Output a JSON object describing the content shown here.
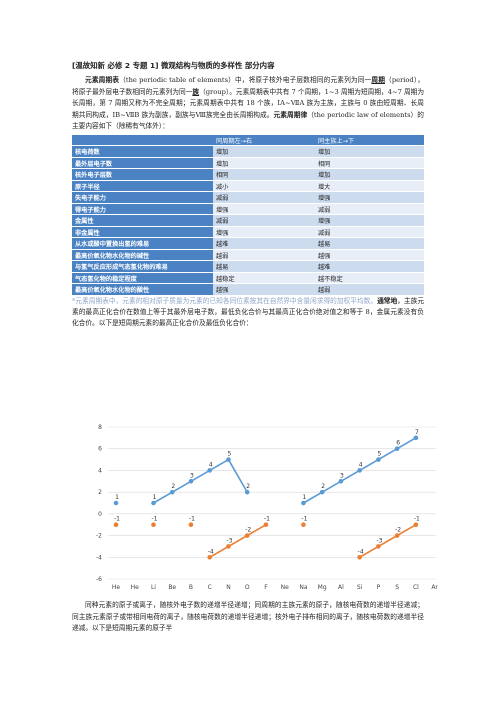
{
  "heading": "[温故知新 必修 2 专题 1] 微观结构与物质的多样性 部分内容",
  "intro": {
    "p1_a": "元素周期表",
    "p1_b": "（the periodic table of elements）中，将原子核外电子层数相同的元素列为同一",
    "p1_c": "周期",
    "p1_d": "（period），将原子最外层电子数相同的元素列为同一",
    "p1_e": "族",
    "p1_f": "（group）。元素周期表中共有 7 个周期，1~3 周期为短周期，4~7 周期为长周期，第 7 周期又称为不完全周期；元素周期表中共有 18 个族，ⅠA~ⅦA 族为主族，主族与 0 族由短周期、长周期共同构成，ⅠB~ⅦB 族为副族，副族与Ⅷ族完全由长周期构成。",
    "p1_g": "元素周期律",
    "p1_h": "（the periodic law of elements）的主要内容如下（除稀有气体外）："
  },
  "table": {
    "header": [
      "",
      "同周期左→右",
      "同主族上→下"
    ],
    "rows": [
      [
        "核电荷数",
        "增加",
        "增加"
      ],
      [
        "最外层电子数",
        "增加",
        "相同"
      ],
      [
        "核外电子层数",
        "相同",
        "增加"
      ],
      [
        "原子半径",
        "减小",
        "增大"
      ],
      [
        "失电子能力",
        "减弱",
        "增强"
      ],
      [
        "得电子能力",
        "增强",
        "减弱"
      ],
      [
        "金属性",
        "减弱",
        "增强"
      ],
      [
        "非金属性",
        "增强",
        "减弱"
      ],
      [
        "从水或酸中置换出氢的难易",
        "越难",
        "越易"
      ],
      [
        "最高价氧化物水化物的碱性",
        "越弱",
        "越强"
      ],
      [
        "与氢气反应形成气态氢化物的难易",
        "越易",
        "越难"
      ],
      [
        "气态氢化物的稳定程度",
        "越稳定",
        "越不稳定"
      ],
      [
        "最高价氧化物水化物的酸性",
        "越强",
        "越弱"
      ]
    ]
  },
  "note": {
    "faded": "*元素周期表中，元素的相对原子质量为元素的已知各同位素按其在自然界中含量闲求得的加权平均数。",
    "bold": "通常地",
    "rest": "，主族元素的最高正化合价在数值上等于其最外层电子数，最低负化合价与其最高正化合价绝对值之和等于 8，金属元素没有负化合价。以下是短周期元素的最高正化合价及最低负化合价："
  },
  "chart_data": {
    "type": "line",
    "categories": [
      "He",
      "He",
      "Li",
      "Be",
      "B",
      "C",
      "N",
      "O",
      "F",
      "Ne",
      "Na",
      "Mg",
      "Al",
      "Si",
      "P",
      "S",
      "Cl",
      "Ar"
    ],
    "ylim": [
      -6,
      8
    ],
    "yticks": [
      -6,
      -4,
      -2,
      0,
      2,
      4,
      6,
      8
    ],
    "series": [
      {
        "color": "#5b9bd5",
        "values": [
          1,
          null,
          1,
          2,
          3,
          4,
          5,
          2,
          null,
          null,
          1,
          2,
          3,
          4,
          5,
          6,
          7,
          null
        ]
      },
      {
        "color": "#ed7d31",
        "values": [
          null,
          null,
          null,
          null,
          null,
          -4,
          -3,
          -2,
          -1,
          null,
          null,
          null,
          null,
          -4,
          -3,
          -2,
          -1,
          null
        ]
      },
      {
        "color": "#ed7d31",
        "values": [
          -1,
          null,
          -1,
          null,
          -1,
          null,
          null,
          null,
          null,
          null,
          -1,
          null,
          null,
          null,
          null,
          null,
          null,
          null
        ]
      }
    ],
    "point_labels_pos": [
      {
        "i": 0,
        "s": 0,
        "t": "1"
      },
      {
        "i": 2,
        "s": 0,
        "t": "1"
      },
      {
        "i": 3,
        "s": 0,
        "t": "2"
      },
      {
        "i": 4,
        "s": 0,
        "t": "3"
      },
      {
        "i": 5,
        "s": 0,
        "t": "4"
      },
      {
        "i": 6,
        "s": 0,
        "t": "5"
      },
      {
        "i": 7,
        "s": 0,
        "t": "2"
      },
      {
        "i": 10,
        "s": 0,
        "t": "1"
      },
      {
        "i": 11,
        "s": 0,
        "t": "2"
      },
      {
        "i": 12,
        "s": 0,
        "t": "3"
      },
      {
        "i": 13,
        "s": 0,
        "t": "4"
      },
      {
        "i": 14,
        "s": 0,
        "t": "5"
      },
      {
        "i": 15,
        "s": 0,
        "t": "6"
      },
      {
        "i": 16,
        "s": 0,
        "t": "7"
      }
    ],
    "point_labels_neg": [
      {
        "i": 0,
        "t": "-1"
      },
      {
        "i": 2,
        "t": "-1"
      },
      {
        "i": 4,
        "t": "-1"
      },
      {
        "i": 5,
        "t": "-4"
      },
      {
        "i": 6,
        "t": "-3"
      },
      {
        "i": 7,
        "t": "-2"
      },
      {
        "i": 8,
        "t": "-1"
      },
      {
        "i": 10,
        "t": "-1"
      },
      {
        "i": 13,
        "t": "-4"
      },
      {
        "i": 14,
        "t": "-3"
      },
      {
        "i": 15,
        "t": "-2"
      },
      {
        "i": 16,
        "t": "-1"
      }
    ]
  },
  "bottom_text": "同种元素的原子或离子，随核外电子数的递增半径递增；同周期的主族元素的原子，随核电荷数的递增半径递减；同主族元素原子或带相同电荷的离子，随核电荷数的递增半径递增；核外电子排布相同的离子，随核电荷数的递增半径递减。以下是短周期元素的原子半"
}
